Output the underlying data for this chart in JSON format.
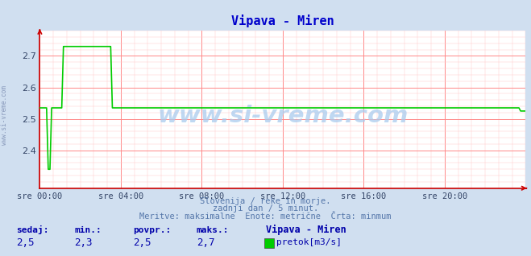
{
  "title": "Vipava - Miren",
  "title_color": "#0000cc",
  "bg_color": "#d0dff0",
  "plot_bg_color": "#ffffff",
  "line_color": "#00cc00",
  "axis_color": "#cc0000",
  "grid_major_color": "#ff8888",
  "grid_minor_color": "#ffcccc",
  "tick_label_color": "#334466",
  "x_tick_labels": [
    "sre 00:00",
    "sre 04:00",
    "sre 08:00",
    "sre 12:00",
    "sre 16:00",
    "sre 20:00"
  ],
  "x_tick_positions": [
    0,
    48,
    96,
    144,
    192,
    240
  ],
  "ylim": [
    2.28,
    2.78
  ],
  "xlim": [
    0,
    288
  ],
  "y_ticks": [
    2.4,
    2.5,
    2.6,
    2.7
  ],
  "watermark": "www.si-vreme.com",
  "sub_text1": "Slovenija / reke in morje.",
  "sub_text2": "zadnji dan / 5 minut.",
  "sub_text3": "Meritve: maksimalne  Enote: metrične  Črta: minmum",
  "sub_text_color": "#5577aa",
  "legend_headers": [
    "sedaj:",
    "min.:",
    "povpr.:",
    "maks.:",
    "Vipava - Miren"
  ],
  "legend_values": [
    "2,5",
    "2,3",
    "2,5",
    "2,7"
  ],
  "legend_color": "#0000aa",
  "pretok_label": "pretok[m3/s]",
  "side_label": "www.si-vreme.com",
  "side_label_color": "#8899bb"
}
